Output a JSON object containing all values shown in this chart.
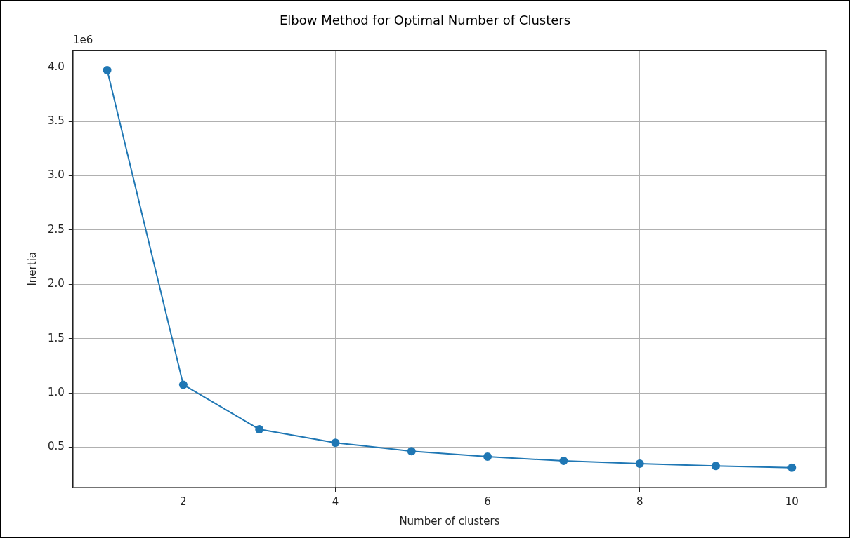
{
  "chart_data": {
    "type": "line",
    "title": "Elbow Method for Optimal Number of Clusters",
    "xlabel": "Number of clusters",
    "ylabel": "Inertia",
    "annotations": [
      "1e6"
    ],
    "x": [
      1,
      2,
      3,
      4,
      5,
      6,
      7,
      8,
      9,
      10
    ],
    "series": [
      {
        "color": "#1f77b4",
        "values": [
          3.973,
          1.075,
          0.664,
          0.54,
          0.463,
          0.413,
          0.373,
          0.348,
          0.327,
          0.311
        ]
      }
    ],
    "xlim": [
      0.55,
      10.45
    ],
    "xticks": [
      2,
      4,
      6,
      8,
      10
    ],
    "ylim": [
      0.128,
      4.156
    ],
    "yticks": [
      0.5,
      {
        "value": 1,
        "label": "1.0"
      },
      1.5,
      {
        "value": 2,
        "label": "2.0"
      },
      2.5,
      {
        "value": 3,
        "label": "3.0"
      },
      3.5,
      {
        "value": 4,
        "label": "4.0"
      }
    ],
    "grid": true,
    "marker": "circle",
    "line_style": "solid",
    "legend": false
  }
}
